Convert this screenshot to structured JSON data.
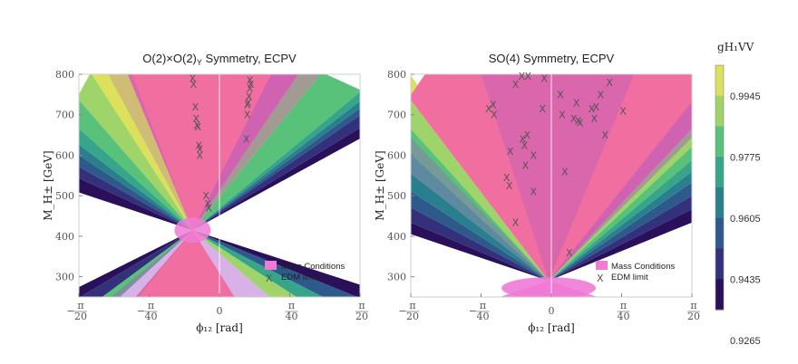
{
  "figure": {
    "colorbar_label": "gH₁VV",
    "colorbar_ticks": [
      "0.9945",
      "0.9775",
      "0.9605",
      "0.9435",
      "0.9265"
    ],
    "colorbar_tick_values": [
      0.9945,
      0.9775,
      0.9605,
      0.9435,
      0.9265
    ],
    "colorbar_colors": [
      "#dde05a",
      "#9fd46a",
      "#58c17a",
      "#36a58a",
      "#2a7f8e",
      "#2d5a8a",
      "#34317c",
      "#2a0f5a"
    ],
    "legend": {
      "mass_label": "Mass Conditions",
      "edm_label": "EDM limit",
      "edm_marker": "X"
    }
  },
  "chart_data": [
    {
      "type": "contour",
      "title": "O(2)×O(2)",
      "title_subscript": "Y",
      "title_suffix": " Symmetry, ECPV",
      "xlabel": "ϕ₁₂ [rad]",
      "ylabel": "M_H± [GeV]",
      "xlim": [
        -0.157,
        0.157
      ],
      "ylim": [
        250,
        800
      ],
      "xtick_values": [
        -0.157,
        -0.0785,
        0,
        0.0785,
        0.157
      ],
      "xtick_labels": [
        {
          "num": "π",
          "den": "20",
          "sign": "−"
        },
        {
          "num": "π",
          "den": "40",
          "sign": "−"
        },
        {
          "num": "0",
          "den": "",
          "sign": ""
        },
        {
          "num": "π",
          "den": "40",
          "sign": ""
        },
        {
          "num": "π",
          "den": "20",
          "sign": ""
        }
      ],
      "ytick_values": [
        300,
        400,
        500,
        600,
        700,
        800
      ],
      "ytick_labels": [
        "300",
        "400",
        "500",
        "600",
        "700",
        "800"
      ],
      "vertex": [
        -0.03,
        415
      ],
      "pink_region": "allowed phase band",
      "edm_points": [
        [
          -0.03,
          790
        ],
        [
          -0.029,
          775
        ],
        [
          -0.027,
          720
        ],
        [
          -0.026,
          690
        ],
        [
          -0.025,
          675
        ],
        [
          -0.024,
          670
        ],
        [
          -0.023,
          625
        ],
        [
          -0.022,
          615
        ],
        [
          -0.022,
          600
        ],
        [
          -0.015,
          500
        ],
        [
          -0.013,
          480
        ],
        [
          -0.012,
          470
        ],
        [
          0.03,
          640
        ],
        [
          0.031,
          700
        ],
        [
          0.031,
          725
        ],
        [
          0.032,
          730
        ],
        [
          0.033,
          745
        ],
        [
          0.034,
          765
        ],
        [
          0.035,
          775
        ],
        [
          0.034,
          785
        ]
      ]
    },
    {
      "type": "contour",
      "title": "SO(4) Symmetry, ECPV",
      "title_subscript": "",
      "title_suffix": "",
      "xlabel": "ϕ₁₂ [rad]",
      "ylabel": "M_H± [GeV]",
      "xlim": [
        -0.157,
        0.157
      ],
      "ylim": [
        250,
        800
      ],
      "xtick_values": [
        -0.157,
        -0.0785,
        0,
        0.0785,
        0.157
      ],
      "xtick_labels": [
        {
          "num": "π",
          "den": "20",
          "sign": "−"
        },
        {
          "num": "π",
          "den": "40",
          "sign": "−"
        },
        {
          "num": "0",
          "den": "",
          "sign": ""
        },
        {
          "num": "π",
          "den": "40",
          "sign": ""
        },
        {
          "num": "π",
          "den": "20",
          "sign": ""
        }
      ],
      "ytick_values": [
        300,
        400,
        500,
        600,
        700,
        800
      ],
      "ytick_labels": [
        "300",
        "400",
        "500",
        "600",
        "700",
        "800"
      ],
      "vertex": [
        -0.003,
        290
      ],
      "pink_region": "allowed phase band",
      "edm_points": [
        [
          -0.07,
          715
        ],
        [
          -0.065,
          725
        ],
        [
          -0.064,
          700
        ],
        [
          -0.05,
          545
        ],
        [
          -0.047,
          525
        ],
        [
          -0.046,
          610
        ],
        [
          -0.04,
          435
        ],
        [
          -0.04,
          775
        ],
        [
          -0.033,
          795
        ],
        [
          -0.032,
          640
        ],
        [
          -0.03,
          625
        ],
        [
          -0.029,
          575
        ],
        [
          -0.027,
          650
        ],
        [
          -0.026,
          795
        ],
        [
          -0.02,
          510
        ],
        [
          -0.02,
          600
        ],
        [
          -0.01,
          715
        ],
        [
          -0.008,
          790
        ],
        [
          0.01,
          750
        ],
        [
          0.012,
          700
        ],
        [
          0.015,
          560
        ],
        [
          0.02,
          360
        ],
        [
          0.025,
          690
        ],
        [
          0.028,
          730
        ],
        [
          0.03,
          685
        ],
        [
          0.032,
          680
        ],
        [
          0.045,
          715
        ],
        [
          0.048,
          690
        ],
        [
          0.05,
          720
        ],
        [
          0.055,
          750
        ],
        [
          0.06,
          650
        ],
        [
          0.065,
          780
        ],
        [
          0.08,
          710
        ]
      ]
    }
  ]
}
